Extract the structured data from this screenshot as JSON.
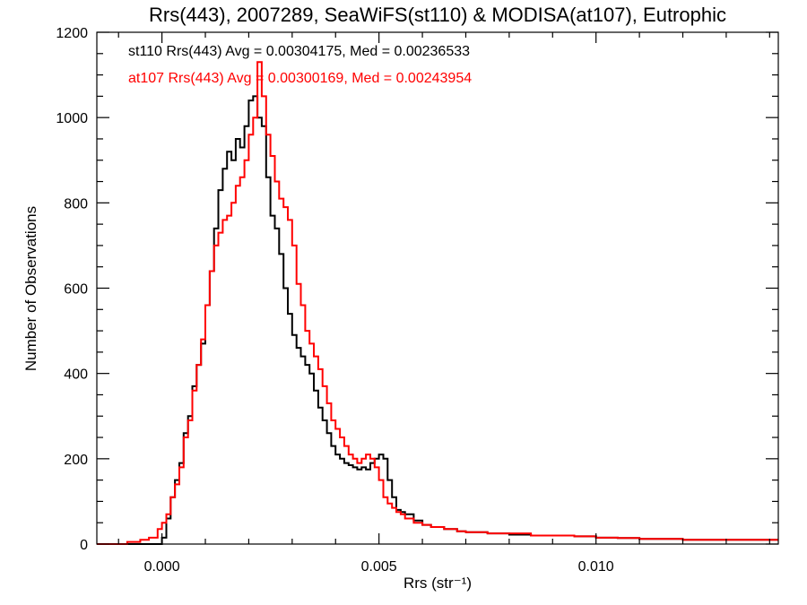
{
  "chart_data": {
    "type": "line",
    "step": true,
    "title": "Rrs(443), 2007289, SeaWiFS(st110) & MODISA(at107), Eutrophic",
    "xlabel": "Rrs (str⁻¹)",
    "ylabel": "Number of Observations",
    "xlim": [
      -0.0015,
      0.0142
    ],
    "ylim": [
      0,
      1200
    ],
    "x_ticks": [
      0.0,
      0.005,
      0.01
    ],
    "x_tick_labels": [
      "0.000",
      "0.005",
      "0.010"
    ],
    "y_ticks": [
      0,
      200,
      400,
      600,
      800,
      1000,
      1200
    ],
    "y_tick_labels": [
      "0",
      "200",
      "400",
      "600",
      "800",
      "1000",
      "1200"
    ],
    "grid": false,
    "annotations": [
      {
        "text": "st110 Rrs(443) Avg = 0.00304175, Med = 0.00236533",
        "color": "#000000"
      },
      {
        "text": "at107 Rrs(443) Avg = 0.00300169, Med = 0.00243954",
        "color": "#ff0000"
      }
    ],
    "series": [
      {
        "color": "#000000",
        "x": [
          -0.0015,
          -0.001,
          0.0,
          0.0001,
          0.0002,
          0.0003,
          0.0004,
          0.0005,
          0.0006,
          0.0007,
          0.0008,
          0.0009,
          0.001,
          0.0011,
          0.0012,
          0.0013,
          0.0014,
          0.0015,
          0.0016,
          0.0017,
          0.0018,
          0.0019,
          0.002,
          0.0021,
          0.0022,
          0.0023,
          0.0024,
          0.0025,
          0.0026,
          0.0027,
          0.0028,
          0.0029,
          0.003,
          0.0031,
          0.0032,
          0.0033,
          0.0034,
          0.0035,
          0.0036,
          0.0037,
          0.0038,
          0.0039,
          0.004,
          0.0041,
          0.0042,
          0.0043,
          0.0044,
          0.0045,
          0.0046,
          0.0047,
          0.0048,
          0.0049,
          0.005,
          0.0051,
          0.0052,
          0.0053,
          0.0054,
          0.0055,
          0.0056,
          0.0058,
          0.006,
          0.0062,
          0.0065,
          0.0068,
          0.007,
          0.0075,
          0.008,
          0.0085,
          0.009,
          0.0095,
          0.01,
          0.0105,
          0.011,
          0.0115,
          0.012,
          0.0125,
          0.013,
          0.0135,
          0.0142
        ],
        "values": [
          0,
          0,
          15,
          60,
          110,
          150,
          190,
          260,
          300,
          370,
          420,
          470,
          560,
          640,
          740,
          830,
          880,
          920,
          900,
          950,
          930,
          980,
          1040,
          1050,
          1000,
          980,
          860,
          770,
          740,
          680,
          600,
          540,
          490,
          460,
          440,
          420,
          400,
          360,
          320,
          290,
          260,
          230,
          210,
          200,
          190,
          185,
          180,
          175,
          180,
          175,
          190,
          200,
          210,
          200,
          150,
          110,
          80,
          75,
          70,
          55,
          45,
          40,
          35,
          30,
          28,
          25,
          22,
          20,
          20,
          18,
          15,
          14,
          12,
          12,
          10,
          10,
          10,
          10,
          10
        ]
      },
      {
        "color": "#ff0000",
        "x": [
          -0.0015,
          -0.0008,
          -0.0005,
          -0.0003,
          -0.0001,
          0.0,
          0.0001,
          0.0002,
          0.0003,
          0.0004,
          0.0005,
          0.0006,
          0.0007,
          0.0008,
          0.0009,
          0.001,
          0.0011,
          0.0012,
          0.0013,
          0.0014,
          0.0015,
          0.0016,
          0.0017,
          0.0018,
          0.0019,
          0.002,
          0.0021,
          0.0022,
          0.0023,
          0.0024,
          0.0025,
          0.0026,
          0.0027,
          0.0028,
          0.0029,
          0.003,
          0.0031,
          0.0032,
          0.0033,
          0.0034,
          0.0035,
          0.0036,
          0.0037,
          0.0038,
          0.0039,
          0.004,
          0.0041,
          0.0042,
          0.0043,
          0.0044,
          0.0045,
          0.0046,
          0.0047,
          0.0048,
          0.0049,
          0.005,
          0.0051,
          0.0052,
          0.0053,
          0.0054,
          0.0055,
          0.0056,
          0.0058,
          0.006,
          0.0062,
          0.0065,
          0.0068,
          0.007,
          0.0075,
          0.008,
          0.0085,
          0.009,
          0.0095,
          0.01,
          0.0105,
          0.011,
          0.0115,
          0.012,
          0.0125,
          0.013,
          0.0135,
          0.0142
        ],
        "values": [
          0,
          5,
          10,
          15,
          35,
          50,
          70,
          110,
          140,
          180,
          250,
          290,
          360,
          420,
          480,
          560,
          640,
          700,
          730,
          760,
          770,
          800,
          840,
          860,
          900,
          960,
          1000,
          1130,
          1050,
          960,
          910,
          850,
          810,
          790,
          760,
          700,
          610,
          560,
          500,
          470,
          440,
          410,
          370,
          330,
          290,
          270,
          250,
          230,
          210,
          200,
          190,
          200,
          210,
          200,
          180,
          150,
          110,
          95,
          85,
          75,
          70,
          60,
          50,
          45,
          40,
          35,
          30,
          28,
          25,
          25,
          20,
          20,
          18,
          15,
          14,
          12,
          12,
          10,
          10,
          10,
          10,
          10
        ]
      }
    ]
  }
}
